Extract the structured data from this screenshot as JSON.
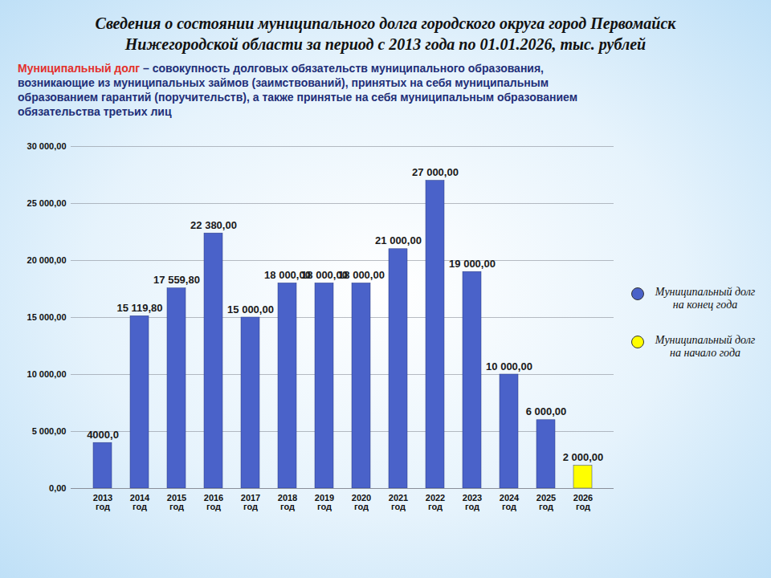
{
  "chart_data": {
    "type": "bar",
    "title": "Сведения о состоянии муниципального долга городского округа город Первомайск Нижегородской области за период с 2013 года по 01.01.2026, тыс. рублей",
    "annotations": [
      {
        "text": "Муниципальный долг",
        "color": "#e3312b"
      },
      {
        "text": "– совокупность долговых обязательств муниципального образования, возникающие из муниципальных займов (заимствований), принятых на себя муниципальным образованием гарантий (поручительств), а также принятые на себя муниципальным образованием обязательства третьих лиц",
        "color": "#1f2f78"
      }
    ],
    "categories": [
      "2013 год",
      "2014 год",
      "2015 год",
      "2016 год",
      "2017 год",
      "2018 год",
      "2019 год",
      "2020 год",
      "2021 год",
      "2022 год",
      "2023 год",
      "2024 год",
      "2025 год",
      "2026 год"
    ],
    "series": [
      {
        "name": "Муниципальный долг на конец года",
        "color": "#4a62c9",
        "values": [
          4000,
          15119.8,
          17559.8,
          22380,
          15000,
          18000,
          18000,
          18000,
          21000,
          27000,
          19000,
          10000,
          6000,
          null
        ],
        "value_labels": [
          "4000,0",
          "15 119,80",
          "17 559,80",
          "22 380,00",
          "15 000,00",
          "18 000,00",
          "18 000,00",
          "18 000,00",
          "21 000,00",
          "27 000,00",
          "19 000,00",
          "10 000,00",
          "6 000,00",
          null
        ]
      },
      {
        "name": "Муниципальный долг на начало года",
        "color": "#ffff00",
        "values": [
          null,
          null,
          null,
          null,
          null,
          null,
          null,
          null,
          null,
          null,
          null,
          null,
          null,
          2000
        ],
        "value_labels": [
          null,
          null,
          null,
          null,
          null,
          null,
          null,
          null,
          null,
          null,
          null,
          null,
          null,
          "2 000,00"
        ]
      }
    ],
    "ylim": [
      0,
      30000
    ],
    "yticks": [
      {
        "value": 0,
        "label": "0,00"
      },
      {
        "value": 5000,
        "label": "5 000,00"
      },
      {
        "value": 10000,
        "label": "10 000,00"
      },
      {
        "value": 15000,
        "label": "15 000,00"
      },
      {
        "value": 20000,
        "label": "20 000,00"
      },
      {
        "value": 25000,
        "label": "25 000,00"
      },
      {
        "value": 30000,
        "label": "30 000,00"
      }
    ],
    "grid": true,
    "data_labels": true,
    "legend": "right"
  }
}
